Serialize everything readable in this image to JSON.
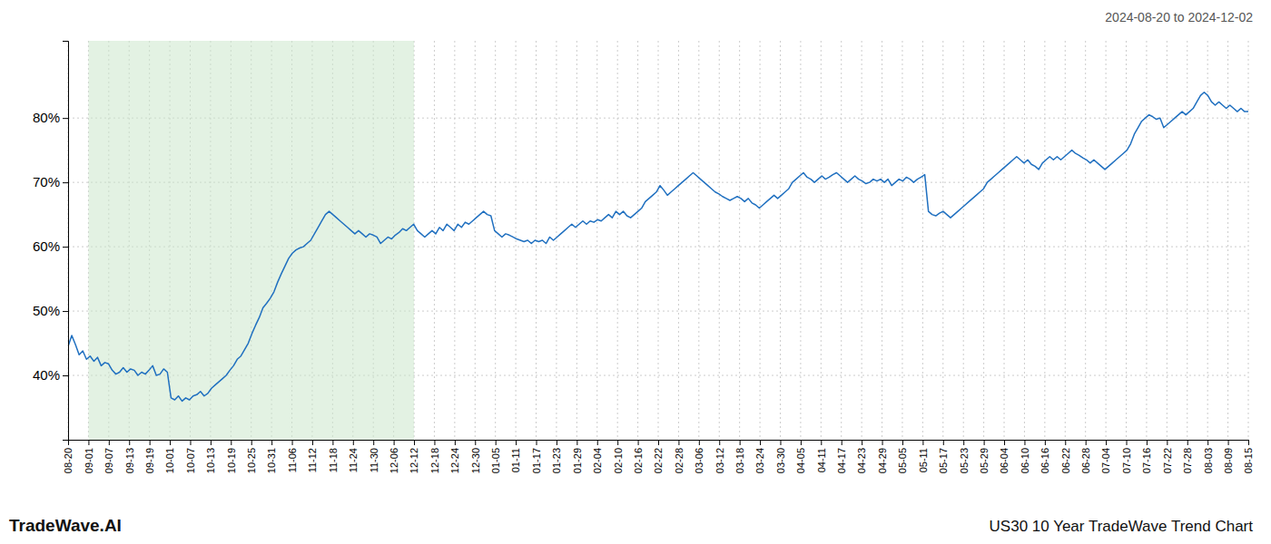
{
  "chart_data": {
    "type": "line",
    "title": "US30 10 Year TradeWave Trend Chart",
    "subtitle": "2024-08-20 to 2024-12-02",
    "annotations": [
      "TradeWave.AI"
    ],
    "color": "#2070c0",
    "grid": true,
    "shaded_range": {
      "start": 1,
      "end": 17,
      "color": "#cce8cc"
    },
    "xlim": [
      0,
      58
    ],
    "xticks": [
      {
        "value": 0,
        "label": "08-20"
      },
      {
        "value": 1,
        "label": "09-01"
      },
      {
        "value": 2,
        "label": "09-07"
      },
      {
        "value": 3,
        "label": "09-13"
      },
      {
        "value": 4,
        "label": "09-19"
      },
      {
        "value": 5,
        "label": "10-01"
      },
      {
        "value": 6,
        "label": "10-07"
      },
      {
        "value": 7,
        "label": "10-13"
      },
      {
        "value": 8,
        "label": "10-19"
      },
      {
        "value": 9,
        "label": "10-25"
      },
      {
        "value": 10,
        "label": "10-31"
      },
      {
        "value": 11,
        "label": "11-06"
      },
      {
        "value": 12,
        "label": "11-12"
      },
      {
        "value": 13,
        "label": "11-18"
      },
      {
        "value": 14,
        "label": "11-24"
      },
      {
        "value": 15,
        "label": "11-30"
      },
      {
        "value": 16,
        "label": "12-06"
      },
      {
        "value": 17,
        "label": "12-12"
      },
      {
        "value": 18,
        "label": "12-18"
      },
      {
        "value": 19,
        "label": "12-24"
      },
      {
        "value": 20,
        "label": "12-30"
      },
      {
        "value": 21,
        "label": "01-05"
      },
      {
        "value": 22,
        "label": "01-11"
      },
      {
        "value": 23,
        "label": "01-17"
      },
      {
        "value": 24,
        "label": "01-23"
      },
      {
        "value": 25,
        "label": "01-29"
      },
      {
        "value": 26,
        "label": "02-04"
      },
      {
        "value": 27,
        "label": "02-10"
      },
      {
        "value": 28,
        "label": "02-16"
      },
      {
        "value": 29,
        "label": "02-22"
      },
      {
        "value": 30,
        "label": "02-28"
      },
      {
        "value": 31,
        "label": "03-06"
      },
      {
        "value": 32,
        "label": "03-12"
      },
      {
        "value": 33,
        "label": "03-18"
      },
      {
        "value": 34,
        "label": "03-24"
      },
      {
        "value": 35,
        "label": "03-30"
      },
      {
        "value": 36,
        "label": "04-05"
      },
      {
        "value": 37,
        "label": "04-11"
      },
      {
        "value": 38,
        "label": "04-17"
      },
      {
        "value": 39,
        "label": "04-23"
      },
      {
        "value": 40,
        "label": "04-29"
      },
      {
        "value": 41,
        "label": "05-05"
      },
      {
        "value": 42,
        "label": "05-11"
      },
      {
        "value": 43,
        "label": "05-17"
      },
      {
        "value": 44,
        "label": "05-23"
      },
      {
        "value": 45,
        "label": "05-29"
      },
      {
        "value": 46,
        "label": "06-04"
      },
      {
        "value": 47,
        "label": "06-10"
      },
      {
        "value": 48,
        "label": "06-16"
      },
      {
        "value": 49,
        "label": "06-22"
      },
      {
        "value": 50,
        "label": "06-28"
      },
      {
        "value": 51,
        "label": "07-04"
      },
      {
        "value": 52,
        "label": "07-10"
      },
      {
        "value": 53,
        "label": "07-16"
      },
      {
        "value": 54,
        "label": "07-22"
      },
      {
        "value": 55,
        "label": "07-28"
      },
      {
        "value": 56,
        "label": "08-03"
      },
      {
        "value": 57,
        "label": "08-09"
      },
      {
        "value": 58,
        "label": "08-15"
      }
    ],
    "ylim": [
      30,
      92
    ],
    "yticks": [
      {
        "value": 40,
        "label": "40%"
      },
      {
        "value": 50,
        "label": "50%"
      },
      {
        "value": 60,
        "label": "60%"
      },
      {
        "value": 70,
        "label": "70%"
      },
      {
        "value": 80,
        "label": "80%"
      }
    ],
    "values": [
      44.5,
      46.2,
      44.8,
      43.2,
      43.8,
      42.5,
      43.0,
      42.2,
      42.8,
      41.5,
      42.0,
      41.8,
      40.8,
      40.2,
      40.5,
      41.2,
      40.5,
      41.0,
      40.8,
      40.0,
      40.5,
      40.2,
      40.8,
      41.5,
      40.0,
      40.2,
      41.0,
      40.5,
      36.5,
      36.2,
      36.8,
      36.0,
      36.5,
      36.2,
      36.8,
      37.0,
      37.5,
      36.8,
      37.2,
      38.0,
      38.5,
      39.0,
      39.5,
      40.0,
      40.8,
      41.5,
      42.5,
      43.0,
      44.0,
      45.0,
      46.5,
      47.8,
      49.0,
      50.5,
      51.2,
      52.0,
      53.0,
      54.5,
      55.8,
      57.0,
      58.2,
      59.0,
      59.5,
      59.8,
      60.0,
      60.5,
      61.0,
      62.0,
      63.0,
      64.0,
      65.0,
      65.5,
      65.0,
      64.5,
      64.0,
      63.5,
      63.0,
      62.5,
      62.0,
      62.5,
      62.0,
      61.5,
      62.0,
      61.8,
      61.5,
      60.5,
      61.0,
      61.5,
      61.2,
      61.8,
      62.2,
      62.8,
      62.5,
      63.0,
      63.5,
      62.5,
      62.0,
      61.5,
      62.0,
      62.5,
      62.0,
      63.0,
      62.5,
      63.5,
      63.0,
      62.5,
      63.5,
      63.0,
      63.8,
      63.5,
      64.0,
      64.5,
      65.0,
      65.5,
      65.0,
      64.8,
      62.5,
      62.0,
      61.5,
      62.0,
      61.8,
      61.5,
      61.2,
      61.0,
      60.8,
      61.0,
      60.5,
      61.0,
      60.8,
      61.0,
      60.5,
      61.5,
      61.0,
      61.5,
      62.0,
      62.5,
      63.0,
      63.5,
      63.0,
      63.5,
      64.0,
      63.5,
      64.0,
      63.8,
      64.2,
      64.0,
      64.5,
      65.0,
      64.5,
      65.5,
      65.0,
      65.5,
      64.8,
      64.5,
      65.0,
      65.5,
      66.0,
      67.0,
      67.5,
      68.0,
      68.5,
      69.5,
      68.8,
      68.0,
      68.5,
      69.0,
      69.5,
      70.0,
      70.5,
      71.0,
      71.5,
      71.0,
      70.5,
      70.0,
      69.5,
      69.0,
      68.5,
      68.2,
      67.8,
      67.5,
      67.2,
      67.5,
      67.8,
      67.5,
      67.0,
      67.5,
      66.8,
      66.5,
      66.0,
      66.5,
      67.0,
      67.5,
      68.0,
      67.5,
      68.0,
      68.5,
      69.0,
      70.0,
      70.5,
      71.0,
      71.5,
      70.8,
      70.5,
      70.0,
      70.5,
      71.0,
      70.5,
      70.8,
      71.2,
      71.5,
      71.0,
      70.5,
      70.0,
      70.5,
      71.0,
      70.5,
      70.2,
      69.8,
      70.0,
      70.5,
      70.2,
      70.5,
      70.0,
      70.5,
      69.5,
      70.0,
      70.5,
      70.2,
      70.8,
      70.5,
      70.0,
      70.5,
      70.8,
      71.2,
      65.5,
      65.0,
      64.8,
      65.2,
      65.5,
      65.0,
      64.5,
      65.0,
      65.5,
      66.0,
      66.5,
      67.0,
      67.5,
      68.0,
      68.5,
      69.0,
      70.0,
      70.5,
      71.0,
      71.5,
      72.0,
      72.5,
      73.0,
      73.5,
      74.0,
      73.5,
      73.0,
      73.5,
      72.8,
      72.5,
      72.0,
      73.0,
      73.5,
      74.0,
      73.5,
      74.0,
      73.5,
      74.0,
      74.5,
      75.0,
      74.5,
      74.2,
      73.8,
      73.5,
      73.0,
      73.5,
      73.0,
      72.5,
      72.0,
      72.5,
      73.0,
      73.5,
      74.0,
      74.5,
      75.0,
      76.0,
      77.5,
      78.5,
      79.5,
      80.0,
      80.5,
      80.2,
      79.8,
      80.0,
      78.5,
      79.0,
      79.5,
      80.0,
      80.5,
      81.0,
      80.5,
      81.0,
      81.5,
      82.5,
      83.5,
      84.0,
      83.5,
      82.5,
      82.0,
      82.5,
      82.0,
      81.5,
      82.0,
      81.5,
      81.0,
      81.5,
      81.0,
      81.0
    ]
  }
}
